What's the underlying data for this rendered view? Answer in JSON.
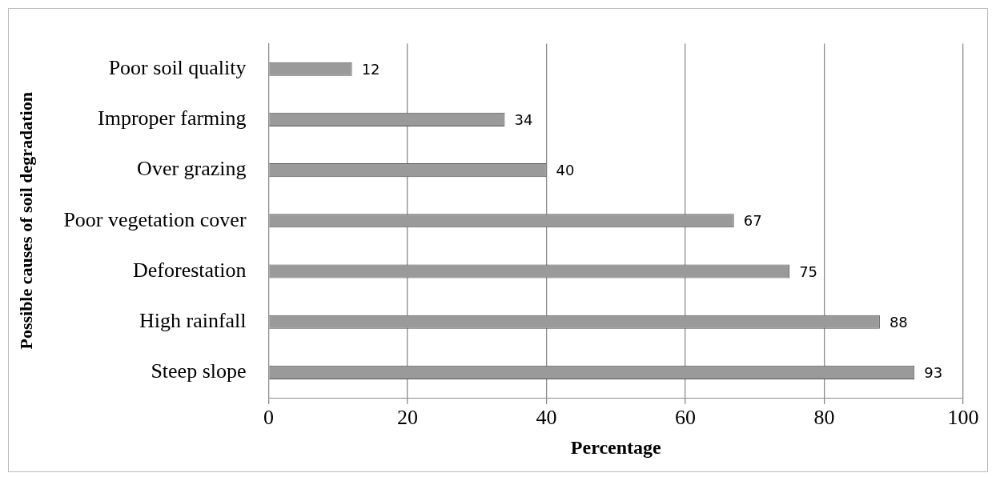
{
  "chart_data": {
    "type": "bar",
    "orientation": "horizontal",
    "xlabel": "Percentage",
    "ylabel": "Possible causes of soil degradation",
    "categories": [
      "Poor soil quality",
      "Improper farming",
      "Over grazing",
      "Poor vegetation cover",
      "Deforestation",
      "High rainfall",
      "Steep slope"
    ],
    "values": [
      12,
      34,
      40,
      67,
      75,
      88,
      93
    ],
    "color": "#9a9a9a",
    "xlim": [
      0,
      100
    ],
    "xticks": [
      0,
      20,
      40,
      60,
      80,
      100
    ],
    "grid": "x",
    "data_labels": true,
    "legend": false
  }
}
